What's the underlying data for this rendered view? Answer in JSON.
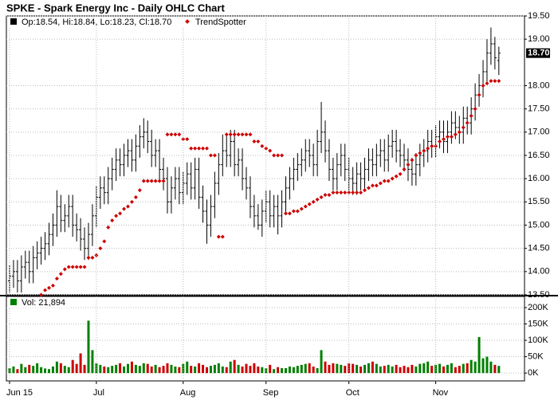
{
  "chart_data": [
    {
      "type": "ohlc",
      "title": "SPKE - Spark Energy Inc - Daily OHLC Chart",
      "legend_text": "Op:18.54, Hi:18.84, Lo:18.23, Cl:18.70",
      "color": "#000000",
      "open": [
        13.8,
        13.9,
        14.0,
        13.8,
        14.1,
        14.2,
        14.0,
        14.3,
        14.4,
        14.5,
        14.6,
        14.8,
        15.0,
        15.4,
        15.1,
        15.2,
        15.4,
        15.0,
        14.9,
        14.7,
        14.5,
        14.8,
        15.2,
        15.6,
        15.8,
        15.7,
        16.0,
        16.2,
        16.4,
        16.3,
        16.5,
        16.6,
        16.4,
        16.7,
        16.9,
        17.0,
        16.8,
        16.5,
        16.6,
        16.2,
        16.0,
        15.5,
        15.8,
        16.0,
        15.7,
        15.9,
        16.1,
        15.8,
        16.2,
        15.6,
        15.3,
        15.0,
        15.4,
        15.9,
        16.3,
        16.6,
        16.5,
        16.8,
        16.3,
        16.4,
        16.0,
        15.8,
        15.4,
        15.2,
        15.0,
        15.3,
        15.5,
        15.2,
        15.4,
        15.2,
        15.5,
        15.8,
        16.0,
        16.2,
        16.3,
        16.4,
        16.6,
        16.5,
        16.3,
        16.8,
        17.0,
        16.6,
        16.2,
        16.0,
        16.3,
        16.5,
        16.2,
        16.0,
        15.9,
        16.1,
        16.0,
        16.2,
        16.4,
        16.3,
        16.5,
        16.6,
        16.4,
        16.7,
        16.8,
        16.6,
        16.5,
        16.4,
        16.2,
        16.1,
        16.3,
        16.5,
        16.6,
        16.8,
        16.7,
        16.9,
        17.0,
        16.8,
        17.0,
        17.2,
        17.1,
        17.0,
        17.3,
        17.2,
        17.5,
        17.8,
        18.0,
        18.3,
        18.7,
        18.9,
        18.54
      ],
      "high": [
        14.15,
        14.25,
        14.25,
        14.35,
        14.45,
        14.45,
        14.55,
        14.65,
        14.75,
        14.85,
        15.05,
        15.25,
        15.75,
        15.65,
        15.45,
        15.65,
        15.65,
        15.25,
        15.15,
        14.95,
        15.05,
        15.45,
        15.85,
        16.05,
        16.05,
        16.25,
        16.45,
        16.65,
        16.65,
        16.75,
        16.85,
        16.85,
        16.95,
        17.15,
        17.3,
        17.25,
        17.05,
        16.85,
        16.85,
        16.45,
        16.25,
        16.05,
        16.25,
        16.25,
        16.15,
        16.35,
        16.35,
        16.45,
        16.45,
        15.85,
        15.55,
        15.65,
        16.15,
        16.55,
        16.95,
        16.95,
        17.05,
        17.05,
        16.65,
        16.65,
        16.25,
        16.05,
        15.65,
        15.45,
        15.55,
        15.75,
        15.75,
        15.65,
        15.65,
        15.75,
        16.05,
        16.25,
        16.45,
        16.55,
        16.65,
        16.85,
        16.85,
        16.75,
        17.05,
        17.65,
        17.25,
        16.85,
        16.45,
        16.55,
        16.75,
        16.75,
        16.45,
        16.25,
        16.35,
        16.35,
        16.45,
        16.65,
        16.65,
        16.75,
        16.85,
        16.85,
        16.95,
        17.05,
        17.05,
        16.85,
        16.75,
        16.65,
        16.45,
        16.55,
        16.75,
        16.85,
        17.05,
        17.05,
        17.15,
        17.25,
        17.25,
        17.25,
        17.45,
        17.45,
        17.35,
        17.55,
        17.55,
        17.75,
        18.05,
        18.25,
        18.55,
        19.0,
        19.25,
        19.05,
        18.84
      ],
      "low": [
        13.55,
        13.65,
        13.55,
        13.55,
        13.85,
        13.75,
        13.75,
        14.05,
        14.15,
        14.25,
        14.35,
        14.55,
        14.75,
        14.85,
        14.85,
        14.95,
        14.75,
        14.65,
        14.45,
        14.25,
        14.25,
        14.55,
        14.95,
        15.35,
        15.45,
        15.45,
        15.75,
        15.95,
        16.05,
        16.05,
        16.25,
        16.15,
        16.15,
        16.45,
        16.65,
        16.55,
        16.25,
        16.25,
        15.95,
        15.75,
        15.25,
        15.25,
        15.55,
        15.45,
        15.45,
        15.65,
        15.55,
        15.55,
        15.35,
        15.05,
        14.6,
        14.75,
        15.15,
        15.65,
        16.05,
        16.25,
        16.25,
        16.05,
        16.05,
        15.75,
        15.55,
        15.15,
        14.95,
        14.9,
        14.75,
        15.05,
        14.95,
        14.95,
        14.8,
        14.95,
        15.25,
        15.55,
        15.75,
        15.95,
        16.05,
        16.15,
        16.25,
        16.05,
        16.05,
        16.55,
        16.35,
        15.95,
        15.75,
        15.75,
        16.05,
        15.95,
        15.75,
        15.65,
        15.65,
        15.75,
        15.75,
        15.95,
        16.05,
        16.05,
        16.25,
        16.15,
        16.15,
        16.45,
        16.35,
        16.25,
        16.15,
        15.95,
        15.85,
        15.85,
        16.05,
        16.25,
        16.35,
        16.45,
        16.45,
        16.65,
        16.55,
        16.55,
        16.75,
        16.85,
        16.75,
        16.75,
        16.95,
        16.95,
        17.25,
        17.55,
        17.75,
        18.05,
        18.45,
        18.35,
        18.23
      ],
      "close": [
        13.9,
        14.0,
        13.8,
        14.1,
        14.2,
        14.0,
        14.3,
        14.4,
        14.5,
        14.6,
        14.8,
        15.0,
        15.4,
        15.1,
        15.2,
        15.4,
        15.0,
        14.9,
        14.7,
        14.5,
        14.8,
        15.2,
        15.6,
        15.8,
        15.7,
        16.0,
        16.2,
        16.4,
        16.3,
        16.5,
        16.6,
        16.4,
        16.7,
        16.9,
        17.0,
        16.8,
        16.5,
        16.6,
        16.2,
        16.0,
        15.5,
        15.8,
        16.0,
        15.7,
        15.9,
        16.1,
        15.8,
        16.2,
        15.6,
        15.3,
        15.0,
        15.4,
        15.9,
        16.3,
        16.6,
        16.5,
        16.8,
        16.3,
        16.4,
        16.0,
        15.8,
        15.4,
        15.2,
        15.0,
        15.3,
        15.5,
        15.2,
        15.4,
        15.2,
        15.5,
        15.8,
        16.0,
        16.2,
        16.3,
        16.4,
        16.6,
        16.5,
        16.3,
        16.8,
        17.0,
        16.6,
        16.2,
        16.0,
        16.3,
        16.5,
        16.2,
        16.0,
        15.9,
        16.1,
        16.0,
        16.2,
        16.4,
        16.3,
        16.5,
        16.6,
        16.4,
        16.7,
        16.8,
        16.6,
        16.5,
        16.4,
        16.2,
        16.1,
        16.3,
        16.5,
        16.6,
        16.8,
        16.7,
        16.9,
        17.0,
        16.8,
        17.0,
        17.2,
        17.1,
        17.0,
        17.3,
        17.2,
        17.5,
        17.8,
        18.0,
        18.3,
        18.7,
        18.9,
        18.6,
        18.7
      ],
      "series": [
        {
          "name": "TrendSpotter",
          "color": "#cc0000",
          "values": [
            null,
            null,
            null,
            null,
            null,
            null,
            null,
            null,
            13.5,
            13.6,
            13.65,
            13.7,
            13.85,
            13.95,
            14.05,
            14.1,
            14.1,
            14.1,
            14.1,
            14.1,
            14.3,
            14.3,
            14.35,
            14.5,
            14.65,
            14.95,
            15.1,
            15.2,
            15.25,
            15.35,
            15.4,
            15.5,
            15.6,
            15.75,
            15.95,
            15.95,
            15.95,
            15.95,
            15.95,
            15.95,
            16.95,
            16.95,
            16.95,
            16.95,
            16.85,
            16.85,
            16.65,
            16.65,
            16.65,
            16.65,
            16.65,
            16.5,
            16.5,
            14.75,
            14.75,
            16.95,
            16.95,
            16.95,
            16.95,
            16.95,
            16.95,
            16.95,
            16.8,
            16.8,
            16.7,
            16.65,
            16.6,
            16.5,
            16.5,
            16.5,
            15.25,
            15.25,
            15.3,
            15.3,
            15.35,
            15.4,
            15.45,
            15.5,
            15.55,
            15.6,
            15.65,
            15.65,
            15.7,
            15.7,
            15.7,
            15.7,
            15.7,
            15.7,
            15.7,
            15.7,
            15.75,
            15.8,
            15.85,
            15.85,
            15.9,
            15.95,
            15.95,
            16.0,
            16.05,
            16.1,
            16.2,
            16.3,
            16.4,
            16.5,
            16.55,
            16.6,
            16.65,
            16.7,
            16.7,
            16.8,
            16.85,
            16.9,
            16.9,
            16.95,
            17.0,
            17.1,
            17.2,
            17.35,
            17.5,
            17.8,
            18.0,
            18.05,
            18.1,
            18.1,
            18.1
          ]
        }
      ],
      "price_marker": {
        "value": 18.7,
        "label": "18.70"
      },
      "ylim": [
        13.5,
        19.5
      ],
      "yticks": [
        {
          "value": 13.5,
          "label": "13.50"
        },
        {
          "value": 14.0,
          "label": "14.00"
        },
        {
          "value": 14.5,
          "label": "14.50"
        },
        {
          "value": 15.0,
          "label": "15.00"
        },
        {
          "value": 15.5,
          "label": "15.50"
        },
        {
          "value": 16.0,
          "label": "16.00"
        },
        {
          "value": 16.5,
          "label": "16.50"
        },
        {
          "value": 17.0,
          "label": "17.00"
        },
        {
          "value": 17.5,
          "label": "17.50"
        },
        {
          "value": 18.0,
          "label": "18.00"
        },
        {
          "value": 19.0,
          "label": "19.00"
        },
        {
          "value": 19.5,
          "label": "19.50"
        }
      ],
      "grid": true
    },
    {
      "type": "volume",
      "legend_text": "Vol: 21,894",
      "up_color": "#008000",
      "down_color": "#cc0000",
      "categories": [
        "Jun 15",
        null,
        null,
        null,
        null,
        null,
        null,
        null,
        null,
        null,
        null,
        null,
        null,
        null,
        null,
        null,
        null,
        null,
        null,
        null,
        null,
        null,
        "Jul",
        null,
        null,
        null,
        null,
        null,
        null,
        null,
        null,
        null,
        null,
        null,
        null,
        null,
        null,
        null,
        null,
        null,
        null,
        null,
        null,
        null,
        "Aug",
        null,
        null,
        null,
        null,
        null,
        null,
        null,
        null,
        null,
        null,
        null,
        null,
        null,
        null,
        null,
        null,
        null,
        null,
        null,
        null,
        "Sep",
        null,
        null,
        null,
        null,
        null,
        null,
        null,
        null,
        null,
        null,
        null,
        null,
        null,
        null,
        null,
        null,
        null,
        null,
        null,
        null,
        "Oct",
        null,
        null,
        null,
        null,
        null,
        null,
        null,
        null,
        null,
        null,
        null,
        null,
        null,
        null,
        null,
        null,
        null,
        null,
        null,
        null,
        null,
        "Nov",
        null,
        null,
        null,
        null,
        null,
        null,
        null,
        null,
        null,
        null,
        null,
        null,
        null,
        null,
        null,
        null
      ],
      "values": [
        15000,
        20000,
        12000,
        28000,
        18000,
        25000,
        22000,
        30000,
        18000,
        14000,
        12000,
        20000,
        35000,
        30000,
        22000,
        18000,
        40000,
        28000,
        60000,
        25000,
        160000,
        70000,
        30000,
        25000,
        20000,
        18000,
        22000,
        25000,
        30000,
        20000,
        28000,
        35000,
        25000,
        22000,
        30000,
        28000,
        20000,
        25000,
        18000,
        22000,
        30000,
        25000,
        20000,
        18000,
        28000,
        35000,
        22000,
        20000,
        30000,
        25000,
        18000,
        22000,
        25000,
        30000,
        20000,
        18000,
        35000,
        40000,
        25000,
        20000,
        28000,
        22000,
        30000,
        20000,
        18000,
        15000,
        25000,
        12000,
        18000,
        15000,
        15000,
        20000,
        18000,
        22000,
        25000,
        28000,
        30000,
        20000,
        15000,
        70000,
        35000,
        25000,
        30000,
        28000,
        25000,
        22000,
        30000,
        28000,
        25000,
        20000,
        25000,
        30000,
        35000,
        28000,
        20000,
        22000,
        25000,
        20000,
        25000,
        18000,
        22000,
        18000,
        25000,
        20000,
        28000,
        30000,
        35000,
        22000,
        25000,
        28000,
        20000,
        25000,
        30000,
        18000,
        22000,
        28000,
        30000,
        40000,
        35000,
        110000,
        45000,
        50000,
        35000,
        25000,
        21894
      ],
      "ylim": [
        -24000,
        234000
      ],
      "yticks": [
        {
          "value": 0,
          "label": "0K"
        },
        {
          "value": 50000,
          "label": "50K"
        },
        {
          "value": 100000,
          "label": "100K"
        },
        {
          "value": 150000,
          "label": "150K"
        },
        {
          "value": 200000,
          "label": "200K"
        }
      ],
      "grid": true
    }
  ]
}
